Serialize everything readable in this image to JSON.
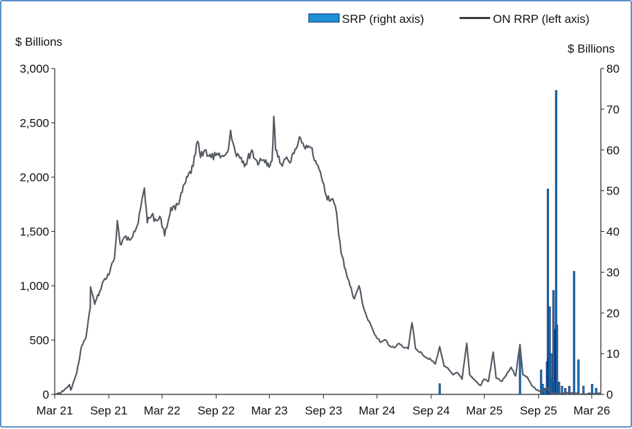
{
  "chart_data": {
    "type": "line",
    "left_axis": {
      "title": "$ Billions",
      "ylim": [
        0,
        3000
      ],
      "ticks": [
        0,
        500,
        1000,
        1500,
        2000,
        2500,
        3000
      ],
      "tick_labels": [
        "0",
        "500",
        "1,000",
        "1,500",
        "2,000",
        "2,500",
        "3,000"
      ]
    },
    "right_axis": {
      "title": "$ Billions",
      "ylim": [
        0,
        80
      ],
      "ticks": [
        0,
        10,
        20,
        30,
        40,
        50,
        60,
        70,
        80
      ],
      "tick_labels": [
        "0",
        "10",
        "20",
        "30",
        "40",
        "50",
        "60",
        "70",
        "80"
      ]
    },
    "x_axis": {
      "range": [
        "2021-03-01",
        "2026-04-01"
      ],
      "ticks": [
        "2021-03-01",
        "2021-09-01",
        "2022-03-01",
        "2022-09-01",
        "2023-03-01",
        "2023-09-01",
        "2024-03-01",
        "2024-09-01",
        "2025-03-01",
        "2025-09-01",
        "2026-03-01"
      ],
      "tick_labels": [
        "Mar 21",
        "Sep 21",
        "Mar 22",
        "Sep 22",
        "Mar 23",
        "Sep 23",
        "Mar 24",
        "Sep 24",
        "Mar 25",
        "Sep 25",
        "Mar 26"
      ]
    },
    "legend": {
      "placement": "top-right"
    },
    "grid": false,
    "series": [
      {
        "name": "ON RRP (left axis)",
        "axis": "left",
        "kind": "line",
        "color": "#555a63",
        "points": [
          [
            "2021-03-01",
            0
          ],
          [
            "2021-03-20",
            10
          ],
          [
            "2021-04-10",
            60
          ],
          [
            "2021-04-20",
            90
          ],
          [
            "2021-04-25",
            40
          ],
          [
            "2021-05-15",
            200
          ],
          [
            "2021-06-01",
            450
          ],
          [
            "2021-06-15",
            520
          ],
          [
            "2021-06-30",
            800
          ],
          [
            "2021-07-01",
            990
          ],
          [
            "2021-07-15",
            830
          ],
          [
            "2021-08-01",
            950
          ],
          [
            "2021-08-15",
            1050
          ],
          [
            "2021-09-01",
            1100
          ],
          [
            "2021-09-20",
            1250
          ],
          [
            "2021-09-30",
            1600
          ],
          [
            "2021-10-10",
            1380
          ],
          [
            "2021-10-25",
            1450
          ],
          [
            "2021-11-10",
            1420
          ],
          [
            "2021-11-25",
            1500
          ],
          [
            "2021-12-10",
            1580
          ],
          [
            "2021-12-31",
            1900
          ],
          [
            "2022-01-10",
            1580
          ],
          [
            "2022-01-25",
            1650
          ],
          [
            "2022-02-10",
            1600
          ],
          [
            "2022-02-25",
            1620
          ],
          [
            "2022-03-10",
            1460
          ],
          [
            "2022-03-31",
            1720
          ],
          [
            "2022-04-15",
            1700
          ],
          [
            "2022-05-01",
            1800
          ],
          [
            "2022-05-20",
            1950
          ],
          [
            "2022-06-15",
            2100
          ],
          [
            "2022-06-30",
            2330
          ],
          [
            "2022-07-10",
            2180
          ],
          [
            "2022-07-25",
            2250
          ],
          [
            "2022-08-15",
            2180
          ],
          [
            "2022-08-31",
            2200
          ],
          [
            "2022-09-15",
            2180
          ],
          [
            "2022-09-30",
            2200
          ],
          [
            "2022-10-10",
            2230
          ],
          [
            "2022-10-20",
            2430
          ],
          [
            "2022-11-05",
            2230
          ],
          [
            "2022-11-25",
            2180
          ],
          [
            "2022-12-10",
            2120
          ],
          [
            "2022-12-31",
            2250
          ],
          [
            "2023-01-10",
            2170
          ],
          [
            "2023-01-25",
            2130
          ],
          [
            "2023-02-10",
            2160
          ],
          [
            "2023-02-28",
            2090
          ],
          [
            "2023-03-10",
            2150
          ],
          [
            "2023-03-16",
            2560
          ],
          [
            "2023-03-22",
            2250
          ],
          [
            "2023-04-10",
            2120
          ],
          [
            "2023-04-25",
            2170
          ],
          [
            "2023-05-10",
            2130
          ],
          [
            "2023-05-31",
            2260
          ],
          [
            "2023-06-15",
            2360
          ],
          [
            "2023-07-01",
            2260
          ],
          [
            "2023-07-20",
            2270
          ],
          [
            "2023-08-05",
            2150
          ],
          [
            "2023-08-25",
            2000
          ],
          [
            "2023-09-10",
            1830
          ],
          [
            "2023-09-29",
            1800
          ],
          [
            "2023-10-15",
            1680
          ],
          [
            "2023-10-31",
            1300
          ],
          [
            "2023-11-15",
            1150
          ],
          [
            "2023-11-30",
            1000
          ],
          [
            "2023-12-15",
            880
          ],
          [
            "2023-12-31",
            1000
          ],
          [
            "2024-01-15",
            800
          ],
          [
            "2024-01-31",
            680
          ],
          [
            "2024-02-15",
            600
          ],
          [
            "2024-02-29",
            520
          ],
          [
            "2024-03-15",
            480
          ],
          [
            "2024-03-31",
            500
          ],
          [
            "2024-04-15",
            440
          ],
          [
            "2024-04-30",
            430
          ],
          [
            "2024-05-15",
            470
          ],
          [
            "2024-05-31",
            430
          ],
          [
            "2024-06-15",
            420
          ],
          [
            "2024-06-28",
            660
          ],
          [
            "2024-07-10",
            420
          ],
          [
            "2024-07-31",
            380
          ],
          [
            "2024-08-15",
            340
          ],
          [
            "2024-08-31",
            320
          ],
          [
            "2024-09-15",
            280
          ],
          [
            "2024-09-30",
            440
          ],
          [
            "2024-10-15",
            260
          ],
          [
            "2024-10-31",
            230
          ],
          [
            "2024-11-15",
            180
          ],
          [
            "2024-11-29",
            200
          ],
          [
            "2024-12-15",
            140
          ],
          [
            "2024-12-31",
            470
          ],
          [
            "2025-01-10",
            180
          ],
          [
            "2025-01-31",
            120
          ],
          [
            "2025-02-15",
            80
          ],
          [
            "2025-02-28",
            140
          ],
          [
            "2025-03-15",
            120
          ],
          [
            "2025-03-31",
            390
          ],
          [
            "2025-04-10",
            150
          ],
          [
            "2025-04-30",
            120
          ],
          [
            "2025-05-15",
            180
          ],
          [
            "2025-05-31",
            250
          ],
          [
            "2025-06-15",
            170
          ],
          [
            "2025-06-30",
            460
          ],
          [
            "2025-07-10",
            180
          ],
          [
            "2025-07-25",
            160
          ],
          [
            "2025-08-10",
            80
          ],
          [
            "2025-08-25",
            40
          ],
          [
            "2025-09-10",
            20
          ],
          [
            "2025-09-30",
            60
          ],
          [
            "2025-10-15",
            10
          ],
          [
            "2025-11-15",
            5
          ],
          [
            "2025-12-15",
            10
          ],
          [
            "2026-01-15",
            5
          ],
          [
            "2026-02-15",
            5
          ],
          [
            "2026-03-15",
            10
          ],
          [
            "2026-03-31",
            5
          ]
        ]
      },
      {
        "name": "SRP (right axis)",
        "axis": "right",
        "kind": "bar",
        "color": "#1f8fd6",
        "outline": "#0d2b6b",
        "points": [
          [
            "2024-09-30",
            2.6
          ],
          [
            "2025-06-30",
            11.1
          ],
          [
            "2025-09-10",
            6.0
          ],
          [
            "2025-09-15",
            2.5
          ],
          [
            "2025-09-22",
            1.5
          ],
          [
            "2025-09-30",
            8.0
          ],
          [
            "2025-10-03",
            50.4
          ],
          [
            "2025-10-06",
            9.0
          ],
          [
            "2025-10-09",
            21.5
          ],
          [
            "2025-10-14",
            10.0
          ],
          [
            "2025-10-18",
            4.0
          ],
          [
            "2025-10-22",
            25.5
          ],
          [
            "2025-10-25",
            3.0
          ],
          [
            "2025-10-29",
            16.0
          ],
          [
            "2025-10-31",
            74.6
          ],
          [
            "2025-11-03",
            17.0
          ],
          [
            "2025-11-10",
            3.0
          ],
          [
            "2025-11-20",
            2.0
          ],
          [
            "2025-12-01",
            1.5
          ],
          [
            "2025-12-15",
            2.0
          ],
          [
            "2025-12-31",
            30.2
          ],
          [
            "2026-01-15",
            8.5
          ],
          [
            "2026-02-01",
            2.0
          ],
          [
            "2026-03-02",
            2.5
          ],
          [
            "2026-03-16",
            1.5
          ]
        ]
      }
    ]
  },
  "legend": {
    "srp_label": "SRP (right axis)",
    "onrrp_label": "ON RRP (left axis)"
  },
  "colors": {
    "onrrp_line": "#555a63",
    "srp_fill": "#1f8fd6",
    "srp_outline": "#0d2b6b",
    "frame_border": "#5b8fc7",
    "axis": "#222222"
  }
}
